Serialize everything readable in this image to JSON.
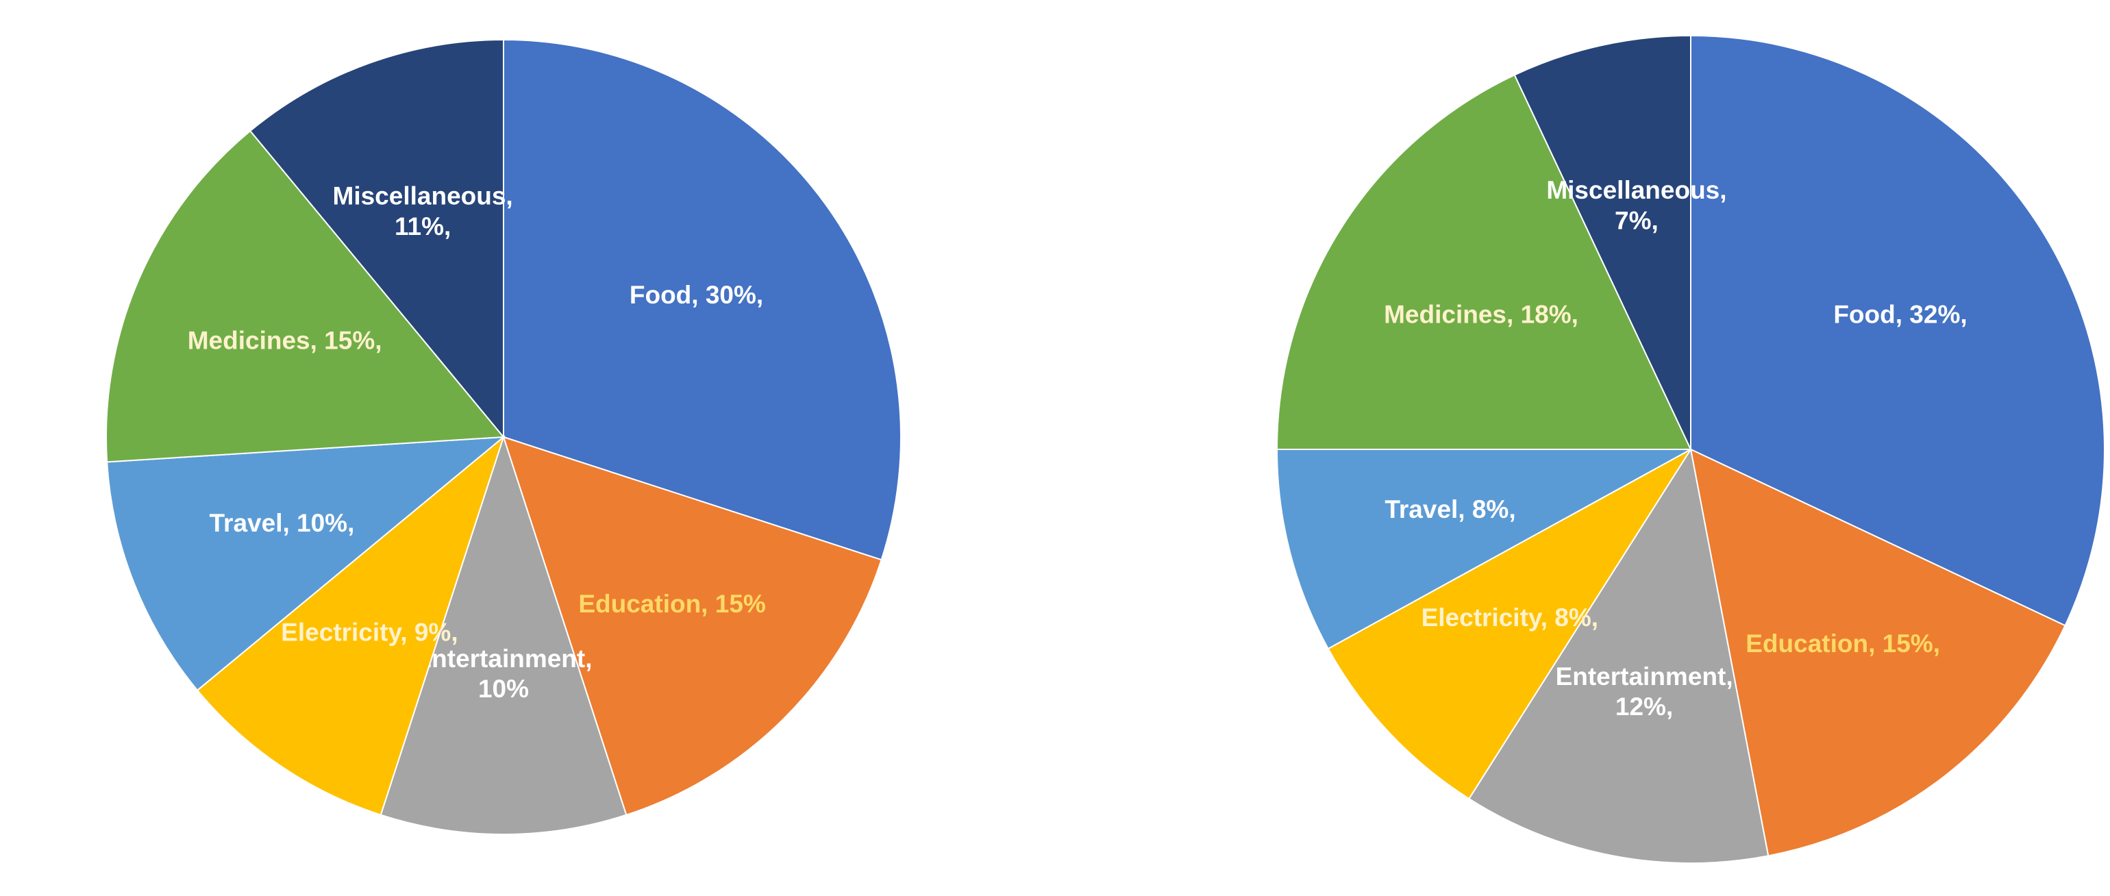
{
  "chart_data": [
    {
      "type": "pie",
      "slices": [
        {
          "label": "Food, 30%,",
          "value": 30,
          "color": "#4472C4",
          "text_color": "#ffffff"
        },
        {
          "label": "Education, 15%",
          "value": 15,
          "color": "#ED7D31",
          "text_color": "#FFD966"
        },
        {
          "label": "Entertainment, 10%",
          "value": 10,
          "color": "#A5A5A5",
          "text_color": "#ffffff"
        },
        {
          "label": "Electricity, 9%,",
          "value": 9,
          "color": "#FFC000",
          "text_color": "#FFF2CC"
        },
        {
          "label": "Travel, 10%,",
          "value": 10,
          "color": "#5B9BD5",
          "text_color": "#ffffff"
        },
        {
          "label": "Medicines, 15%,",
          "value": 15,
          "color": "#70AD47",
          "text_color": "#FFF2CC"
        },
        {
          "label": "Miscellaneous, 11%,",
          "value": 11,
          "color": "#264478",
          "text_color": "#ffffff"
        }
      ]
    },
    {
      "type": "pie",
      "slices": [
        {
          "label": "Food, 32%,",
          "value": 32,
          "color": "#4472C4",
          "text_color": "#ffffff"
        },
        {
          "label": "Education, 15%,",
          "value": 15,
          "color": "#ED7D31",
          "text_color": "#FFD966"
        },
        {
          "label": "Entertainment, 12%,",
          "value": 12,
          "color": "#A5A5A5",
          "text_color": "#ffffff"
        },
        {
          "label": "Electricity, 8%,",
          "value": 8,
          "color": "#FFC000",
          "text_color": "#FFF2CC"
        },
        {
          "label": "Travel, 8%,",
          "value": 8,
          "color": "#5B9BD5",
          "text_color": "#ffffff"
        },
        {
          "label": "Medicines, 18%,",
          "value": 18,
          "color": "#70AD47",
          "text_color": "#FFF2CC"
        },
        {
          "label": "Miscellaneous, 7%,",
          "value": 7,
          "color": "#264478",
          "text_color": "#ffffff"
        }
      ]
    }
  ]
}
